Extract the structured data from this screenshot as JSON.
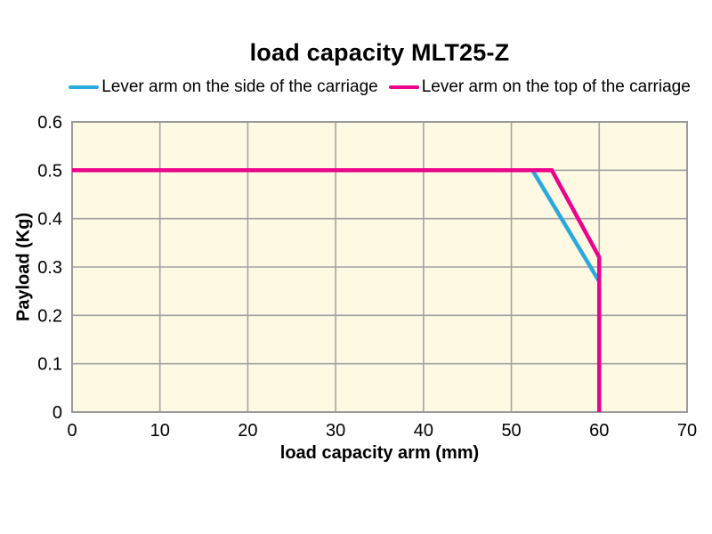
{
  "title": "load capacity MLT25-Z",
  "colors": {
    "plot_bg": "#fdf9e2",
    "grid": "#a3a3a3",
    "frame": "#9b9b9b",
    "text": "#000000",
    "side_series": "#2aa9dc",
    "top_series": "#ec008c"
  },
  "chart_data": {
    "type": "line",
    "title": "load capacity MLT25-Z",
    "xlabel": "load capacity arm (mm)",
    "ylabel": "Payload (Kg)",
    "xlim": [
      0,
      70
    ],
    "ylim": [
      0,
      0.6
    ],
    "x_ticks": [
      0,
      10,
      20,
      30,
      40,
      50,
      60,
      70
    ],
    "y_ticks": [
      0,
      0.1,
      0.2,
      0.3,
      0.4,
      0.5,
      0.6
    ],
    "grid": true,
    "legend_position": "top",
    "series": [
      {
        "name": "Lever arm on the side of the carriage",
        "color": "#2aa9dc",
        "points": [
          [
            0,
            0.5
          ],
          [
            52.4,
            0.5
          ],
          [
            60,
            0.27
          ]
        ]
      },
      {
        "name": "Lever arm on the top of the carriage",
        "color": "#ec008c",
        "points": [
          [
            0,
            0.5
          ],
          [
            54.6,
            0.5
          ],
          [
            60,
            0.32
          ],
          [
            60,
            0
          ]
        ]
      }
    ]
  }
}
